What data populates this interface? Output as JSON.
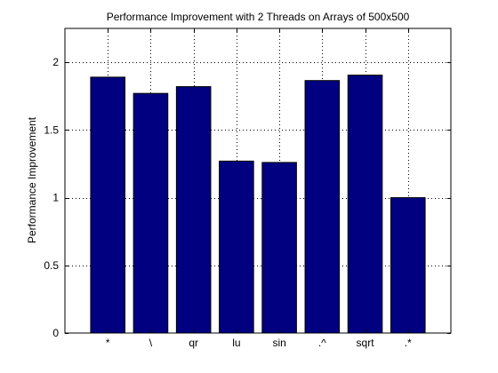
{
  "chart_data": {
    "type": "bar",
    "title": "Performance Improvement with 2 Threads on Arrays of 500x500",
    "xlabel": "",
    "ylabel": "Performance Improvement",
    "categories": [
      "*",
      "\\",
      "qr",
      "lu",
      "sin",
      ".^",
      "sqrt",
      ".*"
    ],
    "values": [
      1.89,
      1.77,
      1.82,
      1.27,
      1.26,
      1.865,
      1.905,
      1.0
    ],
    "ylim": [
      0,
      2.25
    ],
    "yticks": [
      0,
      0.5,
      1,
      1.5,
      2
    ],
    "ytick_labels": [
      "0",
      "0.5",
      "1",
      "1.5",
      "2"
    ],
    "xlim": [
      0,
      9
    ],
    "grid": true,
    "legend": "none",
    "bar_color": "#000080",
    "bar_edge_color": "#000000"
  }
}
